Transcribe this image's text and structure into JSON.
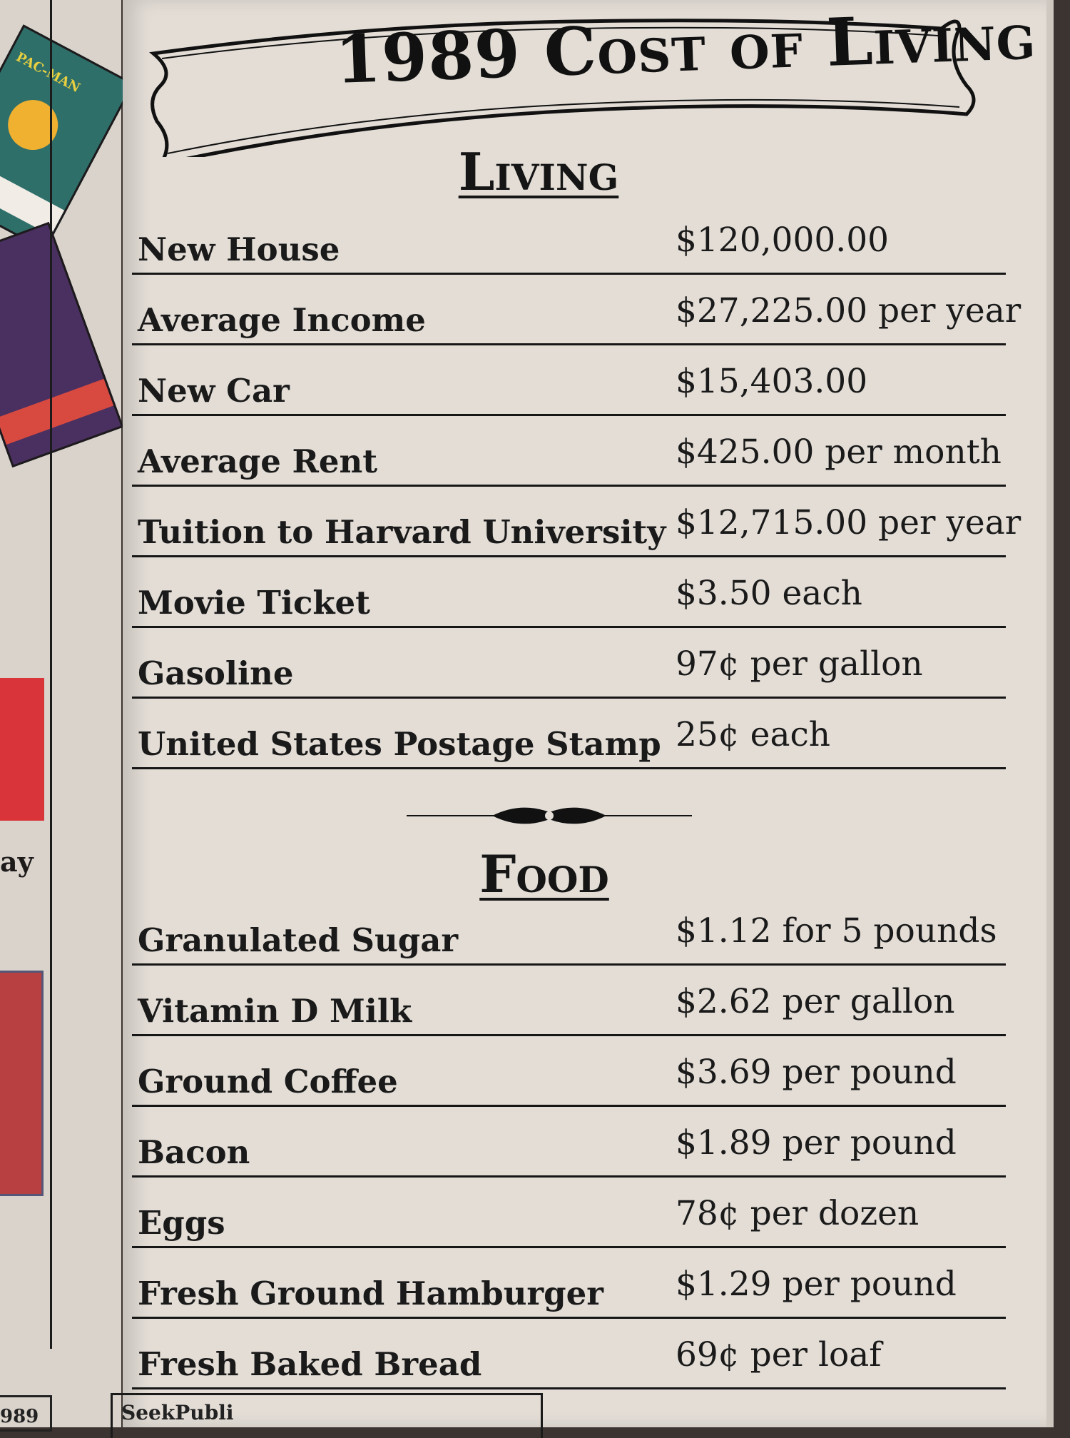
{
  "title": "1989 Cost of Living",
  "left_page": {
    "cover_label": "PAC-MAN",
    "fragment_text": "ay",
    "page_fragment": "989"
  },
  "living": {
    "heading": "Living",
    "rows": [
      {
        "label": "New House",
        "value": "$120,000.00"
      },
      {
        "label": "Average Income",
        "value": "$27,225.00 per year"
      },
      {
        "label": "New Car",
        "value": "$15,403.00"
      },
      {
        "label": "Average Rent",
        "value": "$425.00 per month"
      },
      {
        "label": "Tuition to Harvard University",
        "value": "$12,715.00 per year"
      },
      {
        "label": "Movie Ticket",
        "value": "$3.50 each"
      },
      {
        "label": "Gasoline",
        "value": "97¢ per gallon"
      },
      {
        "label": "United States Postage Stamp",
        "value": "25¢ each"
      }
    ]
  },
  "food": {
    "heading": "Food",
    "rows": [
      {
        "label": "Granulated Sugar",
        "value": "$1.12 for 5 pounds"
      },
      {
        "label": "Vitamin D  Milk",
        "value": "$2.62 per gallon"
      },
      {
        "label": "Ground Coffee",
        "value": "$3.69 per pound"
      },
      {
        "label": "Bacon",
        "value": "$1.89 per pound"
      },
      {
        "label": "Eggs",
        "value": "78¢ per dozen"
      },
      {
        "label": "Fresh Ground Hamburger",
        "value": "$1.29 per pound"
      },
      {
        "label": "Fresh Baked Bread",
        "value": "69¢ per loaf"
      }
    ]
  },
  "footer_box": "SeekPubli"
}
